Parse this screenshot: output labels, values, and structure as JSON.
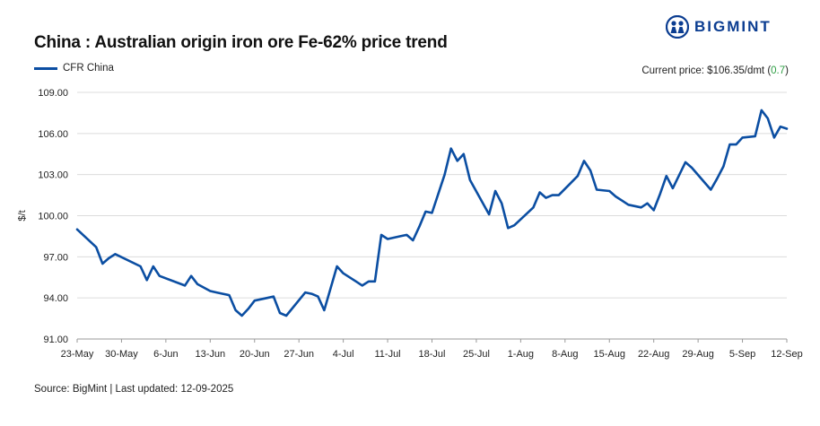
{
  "brand": {
    "name": "BIGMINT",
    "color": "#0b3d91"
  },
  "current_price": {
    "label": "Current price: $106.35/dmt (",
    "change": "0.7",
    "close": ")",
    "change_color": "#2e9e44"
  },
  "source": "Source: BigMint | Last updated: 12-09-2025",
  "chart_data": {
    "type": "line",
    "title": "China : Australian origin iron ore Fe-62% price trend",
    "ylabel": "$/t",
    "ylim": [
      91,
      109
    ],
    "yticks": [
      "91.00",
      "94.00",
      "97.00",
      "100.00",
      "103.00",
      "106.00",
      "109.00"
    ],
    "ytick_values": [
      91,
      94,
      97,
      100,
      103,
      106,
      109
    ],
    "xticks": [
      "23-May",
      "30-May",
      "6-Jun",
      "13-Jun",
      "20-Jun",
      "27-Jun",
      "4-Jul",
      "11-Jul",
      "18-Jul",
      "25-Jul",
      "1-Aug",
      "8-Aug",
      "15-Aug",
      "22-Aug",
      "29-Aug",
      "5-Sep",
      "12-Sep"
    ],
    "x_unit": "days from 23-May",
    "grid": "horizontal",
    "legend": "top-left",
    "series": [
      {
        "name": "CFR China",
        "color": "#0b4ea2",
        "x": [
          0,
          3,
          4,
          5,
          6,
          10,
          11,
          12,
          13,
          17,
          18,
          19,
          21,
          22,
          23,
          24,
          25,
          26,
          27,
          28,
          30,
          31,
          32,
          33,
          36,
          37,
          38,
          39,
          41,
          42,
          44,
          45,
          46,
          47,
          48,
          49,
          51,
          52,
          53,
          54,
          55,
          56,
          58,
          59,
          60,
          61,
          62,
          65,
          66,
          67,
          68,
          69,
          72,
          73,
          74,
          75,
          76,
          79,
          80,
          81,
          82,
          84,
          85,
          86,
          87,
          89,
          90,
          91,
          92,
          93,
          94,
          96,
          97,
          100,
          101,
          102,
          103,
          104,
          105,
          107,
          108,
          109,
          110,
          111,
          112
        ],
        "values": [
          99.0,
          97.7,
          96.5,
          96.9,
          97.2,
          96.3,
          95.3,
          96.3,
          95.6,
          94.9,
          95.6,
          95.0,
          94.5,
          94.4,
          94.3,
          94.2,
          93.1,
          92.7,
          93.2,
          93.8,
          94.0,
          94.1,
          92.9,
          92.7,
          94.4,
          94.3,
          94.1,
          93.1,
          96.3,
          95.8,
          95.2,
          94.9,
          95.2,
          95.2,
          98.6,
          98.3,
          98.5,
          98.6,
          98.2,
          99.2,
          100.3,
          100.2,
          103.0,
          104.9,
          104.0,
          104.5,
          102.6,
          100.1,
          101.8,
          100.9,
          99.1,
          99.3,
          100.6,
          101.7,
          101.3,
          101.5,
          101.5,
          102.9,
          104.0,
          103.3,
          101.9,
          101.8,
          101.4,
          101.1,
          100.8,
          100.6,
          100.9,
          100.4,
          101.6,
          102.9,
          102.0,
          103.9,
          103.5,
          101.9,
          102.7,
          103.6,
          105.2,
          105.2,
          105.7,
          105.8,
          107.7,
          107.1,
          105.7,
          106.5,
          106.35
        ]
      }
    ]
  }
}
